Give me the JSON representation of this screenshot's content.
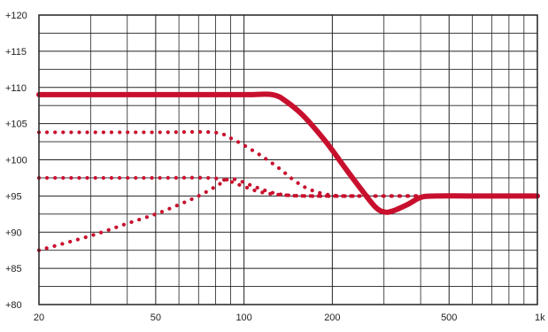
{
  "chart_data": {
    "type": "line",
    "title": "",
    "xlabel": "",
    "ylabel": "",
    "x_scale": "log",
    "xlim": [
      20,
      1000
    ],
    "ylim": [
      80,
      120
    ],
    "grid": true,
    "legend": "none",
    "x_ticks": [
      {
        "value": 20,
        "label": "20"
      },
      {
        "value": 50,
        "label": "50"
      },
      {
        "value": 100,
        "label": "100"
      },
      {
        "value": 200,
        "label": "200"
      },
      {
        "value": 500,
        "label": "500"
      },
      {
        "value": 1000,
        "label": "1k"
      }
    ],
    "x_minor_grid": [
      30,
      40,
      60,
      70,
      80,
      90,
      300,
      400,
      600,
      700,
      800,
      900
    ],
    "y_ticks": [
      {
        "value": 80,
        "label": "+80"
      },
      {
        "value": 85,
        "label": "+85"
      },
      {
        "value": 90,
        "label": "+90"
      },
      {
        "value": 95,
        "label": "+95"
      },
      {
        "value": 100,
        "label": "+100"
      },
      {
        "value": 105,
        "label": "+105"
      },
      {
        "value": 110,
        "label": "+110"
      },
      {
        "value": 115,
        "label": "+115"
      },
      {
        "value": 120,
        "label": "+120"
      }
    ],
    "y_minor_grid": [
      82.5,
      87.5,
      92.5,
      97.5,
      102.5,
      107.5,
      112.5,
      117.5
    ],
    "series": [
      {
        "style": "solid",
        "color": "#c8102e",
        "points": [
          [
            20,
            109
          ],
          [
            50,
            109
          ],
          [
            100,
            109
          ],
          [
            125,
            109
          ],
          [
            140,
            108
          ],
          [
            160,
            106
          ],
          [
            190,
            102.5
          ],
          [
            220,
            99
          ],
          [
            250,
            96
          ],
          [
            280,
            93.5
          ],
          [
            300,
            92.8
          ],
          [
            320,
            92.9
          ],
          [
            360,
            93.8
          ],
          [
            400,
            94.8
          ],
          [
            450,
            95
          ],
          [
            600,
            95
          ],
          [
            1000,
            95
          ]
        ]
      },
      {
        "style": "dotted",
        "color": "#c8102e",
        "points": [
          [
            20,
            103.8
          ],
          [
            50,
            103.8
          ],
          [
            78,
            103.8
          ],
          [
            90,
            103
          ],
          [
            110,
            101
          ],
          [
            130,
            99
          ],
          [
            150,
            97
          ],
          [
            170,
            95.8
          ],
          [
            200,
            95.1
          ],
          [
            250,
            95
          ],
          [
            400,
            95
          ]
        ]
      },
      {
        "style": "dotted",
        "color": "#c8102e",
        "points": [
          [
            20,
            97.5
          ],
          [
            50,
            97.5
          ],
          [
            75,
            97.5
          ],
          [
            88,
            97.1
          ],
          [
            100,
            96.3
          ],
          [
            115,
            95.5
          ],
          [
            140,
            95.1
          ],
          [
            180,
            95
          ],
          [
            400,
            95
          ]
        ]
      },
      {
        "style": "dotted",
        "color": "#c8102e",
        "points": [
          [
            20,
            87.5
          ],
          [
            30,
            89.5
          ],
          [
            40,
            91.2
          ],
          [
            50,
            92.5
          ],
          [
            60,
            93.8
          ],
          [
            70,
            95
          ],
          [
            80,
            96.3
          ],
          [
            88,
            97.3
          ],
          [
            95,
            97.2
          ],
          [
            110,
            96.2
          ],
          [
            130,
            95.3
          ],
          [
            160,
            95
          ],
          [
            250,
            95
          ]
        ]
      }
    ]
  }
}
